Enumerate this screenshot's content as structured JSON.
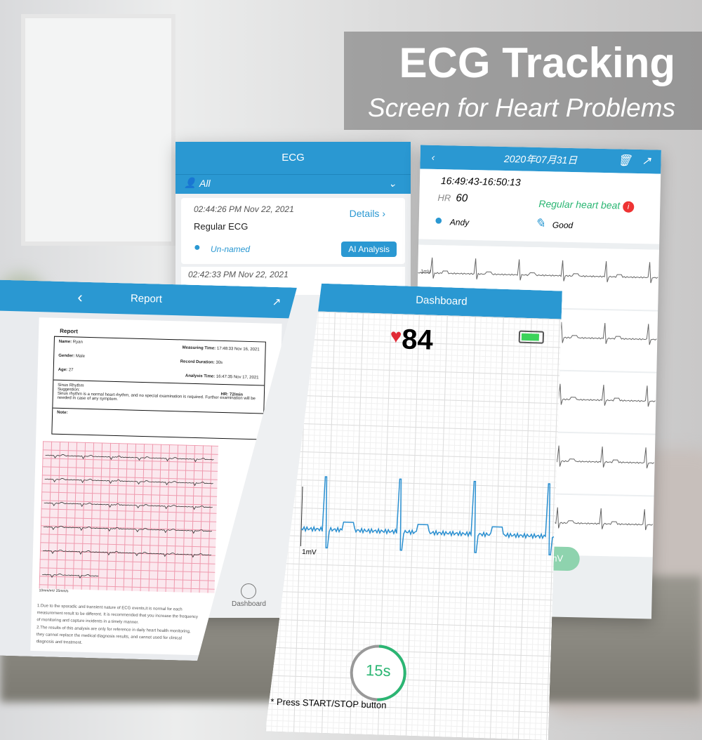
{
  "banner": {
    "title": "ECG Tracking",
    "subtitle": "Screen for Heart Problems"
  },
  "ecg_list": {
    "header": "ECG",
    "filter": "All",
    "records": [
      {
        "time": "02:44:26 PM Nov 22, 2021",
        "type": "Regular ECG",
        "details": "Details",
        "user": "Un-named",
        "ai_button": "AI Analysis"
      },
      {
        "time": "02:42:33 PM Nov 22, 2021"
      }
    ],
    "tab_dashboard": "Dashboard"
  },
  "detail": {
    "date": "2020年07月31日",
    "time_range": "16:49:43-16:50:13",
    "hr_label": "HR",
    "hr": "60",
    "status": "Regular heart beat",
    "user": "Andy",
    "note": "Good",
    "scale_label": "1mV",
    "scale_button": "1mV"
  },
  "report": {
    "header": "Report",
    "doc_title": "Report",
    "name_label": "Name:",
    "name": "Ryan",
    "gender_label": "Gender:",
    "gender": "Male",
    "age_label": "Age:",
    "age": "27",
    "measuring_label": "Measuring Time:",
    "measuring": "17:48:33 Nov 16, 2021",
    "duration_label": "Record Duration:",
    "duration": "30s",
    "analysis_label": "Analysis Time:",
    "analysis": "16:47:35 Nov 17, 2021",
    "rhythm": "Sinus Rhythm",
    "suggestion_label": "Suggestion:",
    "hr_label": "HR:",
    "hr": "72/min",
    "suggestion": "Sinus rhythm is a normal heart rhythm, and no special examination is required. Further examination will be needed in case of any symptom.",
    "note_label": "Note:",
    "scale": "10mm/mV 25mm/s",
    "disclaimer1": "1.Due to the sporadic and transient nature of ECG events,it is normal for each measurement result to be different. It is recommended that you increase the frequency of monitoring and capture incidents in a timely manner.",
    "disclaimer2": "2.The results of this analysis are only for reference in daily heart health monitoring, they cannot replace the medical diagnosis results, and cannot used for clinical diagnosis and treatment."
  },
  "dashboard": {
    "header": "Dashboard",
    "heart_rate": "84",
    "battery_level": 0.9,
    "scale_label": "1mV",
    "timer": "15s",
    "timer_progress": 0.5,
    "hint": "* Press START/STOP button"
  },
  "colors": {
    "brand": "#2a98d2",
    "green": "#2bb673",
    "heart": "#e02a36",
    "trace": "#2a8fd0"
  }
}
